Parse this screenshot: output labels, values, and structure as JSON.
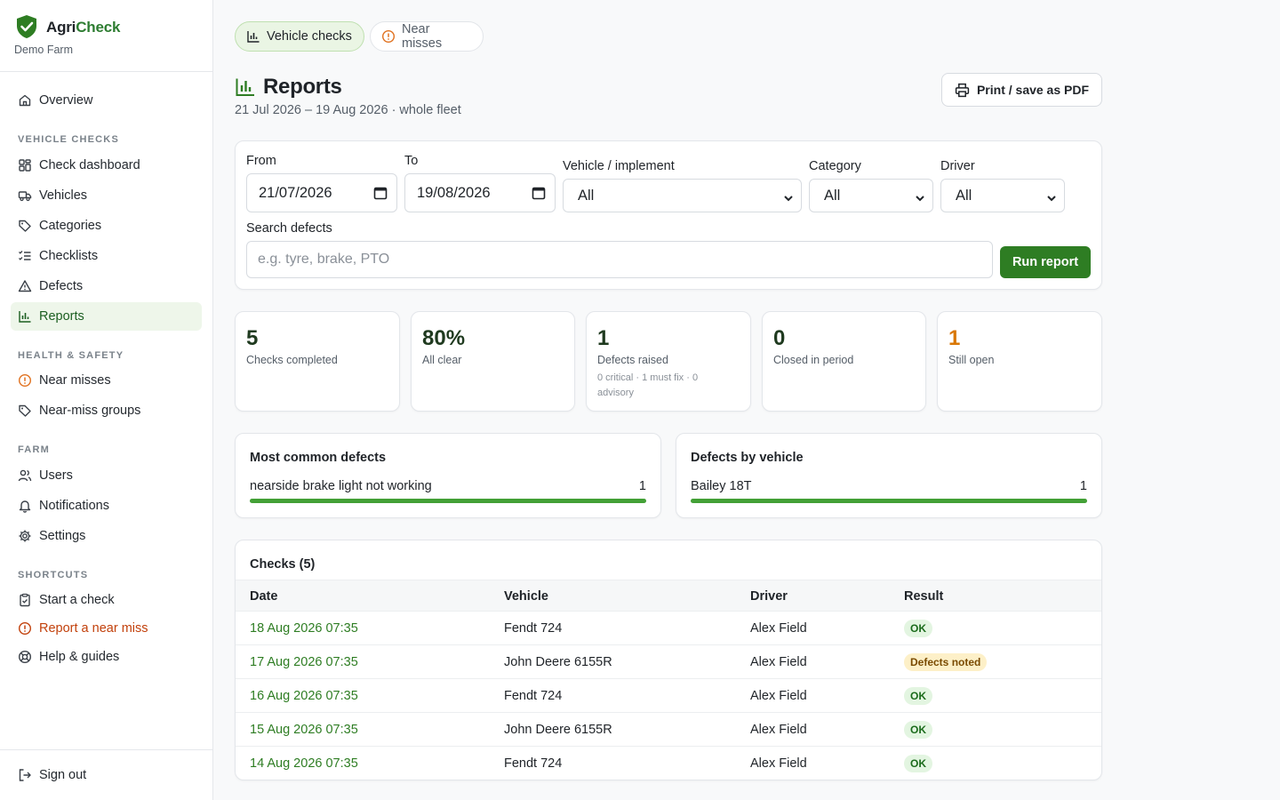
{
  "brand": {
    "name_prefix": "Agri",
    "name_suffix": "Check",
    "farm": "Demo Farm"
  },
  "sidebar": {
    "overview": "Overview",
    "sections": {
      "vehicle_checks": "VEHICLE CHECKS",
      "health_safety": "HEALTH & SAFETY",
      "farm": "FARM",
      "shortcuts": "SHORTCUTS"
    },
    "vehicle_items": [
      {
        "label": "Check dashboard",
        "icon": "grid-icon"
      },
      {
        "label": "Vehicles",
        "icon": "truck-icon"
      },
      {
        "label": "Categories",
        "icon": "tag-icon"
      },
      {
        "label": "Checklists",
        "icon": "checklist-icon"
      },
      {
        "label": "Defects",
        "icon": "warning-triangle-icon"
      },
      {
        "label": "Reports",
        "icon": "bar-chart-icon",
        "active": true
      }
    ],
    "hs_items": [
      {
        "label": "Near misses",
        "icon": "alert-circle-icon"
      },
      {
        "label": "Near-miss groups",
        "icon": "tag-icon"
      }
    ],
    "farm_items": [
      {
        "label": "Users",
        "icon": "users-icon"
      },
      {
        "label": "Notifications",
        "icon": "bell-icon"
      },
      {
        "label": "Settings",
        "icon": "gear-icon"
      }
    ],
    "shortcut_items": [
      {
        "label": "Start a check",
        "icon": "clipboard-check-icon"
      },
      {
        "label": "Report a near miss",
        "icon": "alert-circle-icon"
      },
      {
        "label": "Help & guides",
        "icon": "lifebuoy-icon"
      }
    ],
    "sign_out": "Sign out"
  },
  "tabs": {
    "vehicle_checks": "Vehicle checks",
    "near_misses": "Near misses"
  },
  "page": {
    "title": "Reports",
    "subtitle": "21 Jul 2026 – 19 Aug 2026 · whole fleet",
    "print_label": "Print / save as PDF"
  },
  "filters": {
    "from_label": "From",
    "from_value": "21/07/2026",
    "to_label": "To",
    "to_value": "19/08/2026",
    "vehicle_label": "Vehicle / implement",
    "vehicle_value": "All",
    "category_label": "Category",
    "category_value": "All",
    "driver_label": "Driver",
    "driver_value": "All",
    "search_label": "Search defects",
    "search_placeholder": "e.g. tyre, brake, PTO",
    "run_label": "Run report"
  },
  "stats": [
    {
      "value": "5",
      "label": "Checks completed"
    },
    {
      "value": "80%",
      "label": "All clear"
    },
    {
      "value": "1",
      "label": "Defects raised",
      "sub": "0 critical · 1 must fix · 0 advisory"
    },
    {
      "value": "0",
      "label": "Closed in period"
    },
    {
      "value": "1",
      "label": "Still open"
    }
  ],
  "common_defects": {
    "title": "Most common defects",
    "items": [
      {
        "label": "nearside brake light not working",
        "count": "1",
        "fraction": 1.0
      }
    ]
  },
  "defects_by_vehicle": {
    "title": "Defects by vehicle",
    "items": [
      {
        "label": "Bailey 18T",
        "count": "1",
        "fraction": 1.0
      }
    ]
  },
  "checks_table": {
    "title": "Checks (5)",
    "columns": [
      "Date",
      "Vehicle",
      "Driver",
      "Result"
    ],
    "rows": [
      {
        "date": "18 Aug 2026 07:35",
        "vehicle": "Fendt 724",
        "driver": "Alex Field",
        "result": "OK",
        "status": "ok"
      },
      {
        "date": "17 Aug 2026 07:35",
        "vehicle": "John Deere 6155R",
        "driver": "Alex Field",
        "result": "Defects noted",
        "status": "warn"
      },
      {
        "date": "16 Aug 2026 07:35",
        "vehicle": "Fendt 724",
        "driver": "Alex Field",
        "result": "OK",
        "status": "ok"
      },
      {
        "date": "15 Aug 2026 07:35",
        "vehicle": "John Deere 6155R",
        "driver": "Alex Field",
        "result": "OK",
        "status": "ok"
      },
      {
        "date": "14 Aug 2026 07:35",
        "vehicle": "Fendt 724",
        "driver": "Alex Field",
        "result": "OK",
        "status": "ok"
      }
    ]
  },
  "colors": {
    "brand_green": "#2e7d23",
    "accent_orange": "#c2410c",
    "ok_bg": "#e3f5e1",
    "warn_bg": "#fdf0c8"
  }
}
